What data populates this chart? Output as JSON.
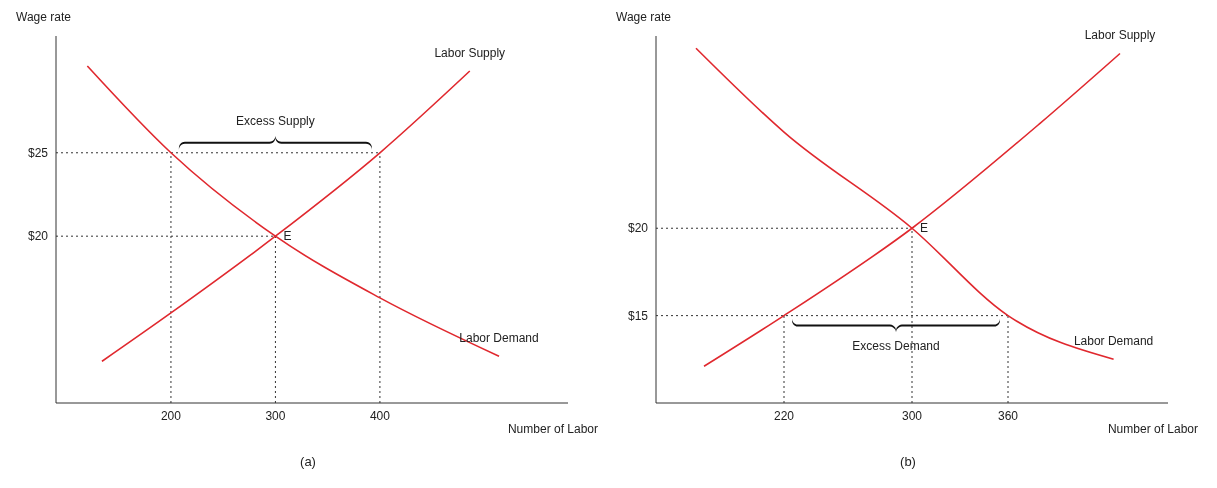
{
  "chart_data": [
    {
      "type": "line",
      "ylabel": "Wage rate",
      "xlabel": "Number of Labor",
      "xlim": [
        90,
        580
      ],
      "xticks": [
        200,
        300,
        400
      ],
      "ylim": [
        10,
        32
      ],
      "yticks": [
        {
          "value": 25,
          "label": "$25"
        },
        {
          "value": 20,
          "label": "$20"
        }
      ],
      "series": [
        {
          "name": "Labor Supply",
          "color": "#e0282e",
          "x": [
            134,
            200,
            300,
            400,
            486
          ],
          "values": [
            12.5,
            15.4,
            20,
            25,
            29.9
          ]
        },
        {
          "name": "Labor Demand",
          "color": "#e0282e",
          "x": [
            120,
            200,
            300,
            400,
            514
          ],
          "values": [
            30.2,
            25,
            20,
            16.3,
            12.8
          ]
        }
      ],
      "ref_lines": [
        {
          "axis": "y",
          "value": 25,
          "color": "#333333",
          "line_style": "dotted"
        },
        {
          "axis": "y",
          "value": 20,
          "color": "#333333",
          "line_style": "dotted"
        },
        {
          "axis": "x",
          "value": 200,
          "color": "#333333",
          "line_style": "dotted"
        },
        {
          "axis": "x",
          "value": 300,
          "color": "#333333",
          "line_style": "dotted"
        },
        {
          "axis": "x",
          "value": 400,
          "color": "#333333",
          "line_style": "dotted"
        }
      ],
      "annotations": [
        "Excess Supply",
        {
          "text": "E",
          "x": 300,
          "y": 20
        },
        "(a)"
      ]
    },
    {
      "type": "line",
      "ylabel": "Wage rate",
      "xlabel": "Number of Labor",
      "xlim": [
        140,
        460
      ],
      "xticks": [
        220,
        300,
        360
      ],
      "ylim": [
        10,
        31
      ],
      "yticks": [
        {
          "value": 20,
          "label": "$20"
        },
        {
          "value": 15,
          "label": "$15"
        }
      ],
      "series": [
        {
          "name": "Labor Supply",
          "color": "#e0282e",
          "x": [
            170,
            220,
            300,
            380,
            430
          ],
          "values": [
            12.1,
            15,
            20,
            26,
            30
          ]
        },
        {
          "name": "Labor Demand",
          "color": "#e0282e",
          "x": [
            165,
            220,
            300,
            360,
            426
          ],
          "values": [
            30.3,
            25.5,
            20,
            15,
            12.5
          ]
        }
      ],
      "ref_lines": [
        {
          "axis": "y",
          "value": 20,
          "color": "#333333",
          "line_style": "dotted"
        },
        {
          "axis": "y",
          "value": 15,
          "color": "#333333",
          "line_style": "dotted"
        },
        {
          "axis": "x",
          "value": 220,
          "color": "#333333",
          "line_style": "dotted"
        },
        {
          "axis": "x",
          "value": 300,
          "color": "#333333",
          "line_style": "dotted"
        },
        {
          "axis": "x",
          "value": 360,
          "color": "#333333",
          "line_style": "dotted"
        }
      ],
      "annotations": [
        "Excess Demand",
        {
          "text": "E",
          "x": 300,
          "y": 20
        },
        "(b)"
      ]
    }
  ]
}
